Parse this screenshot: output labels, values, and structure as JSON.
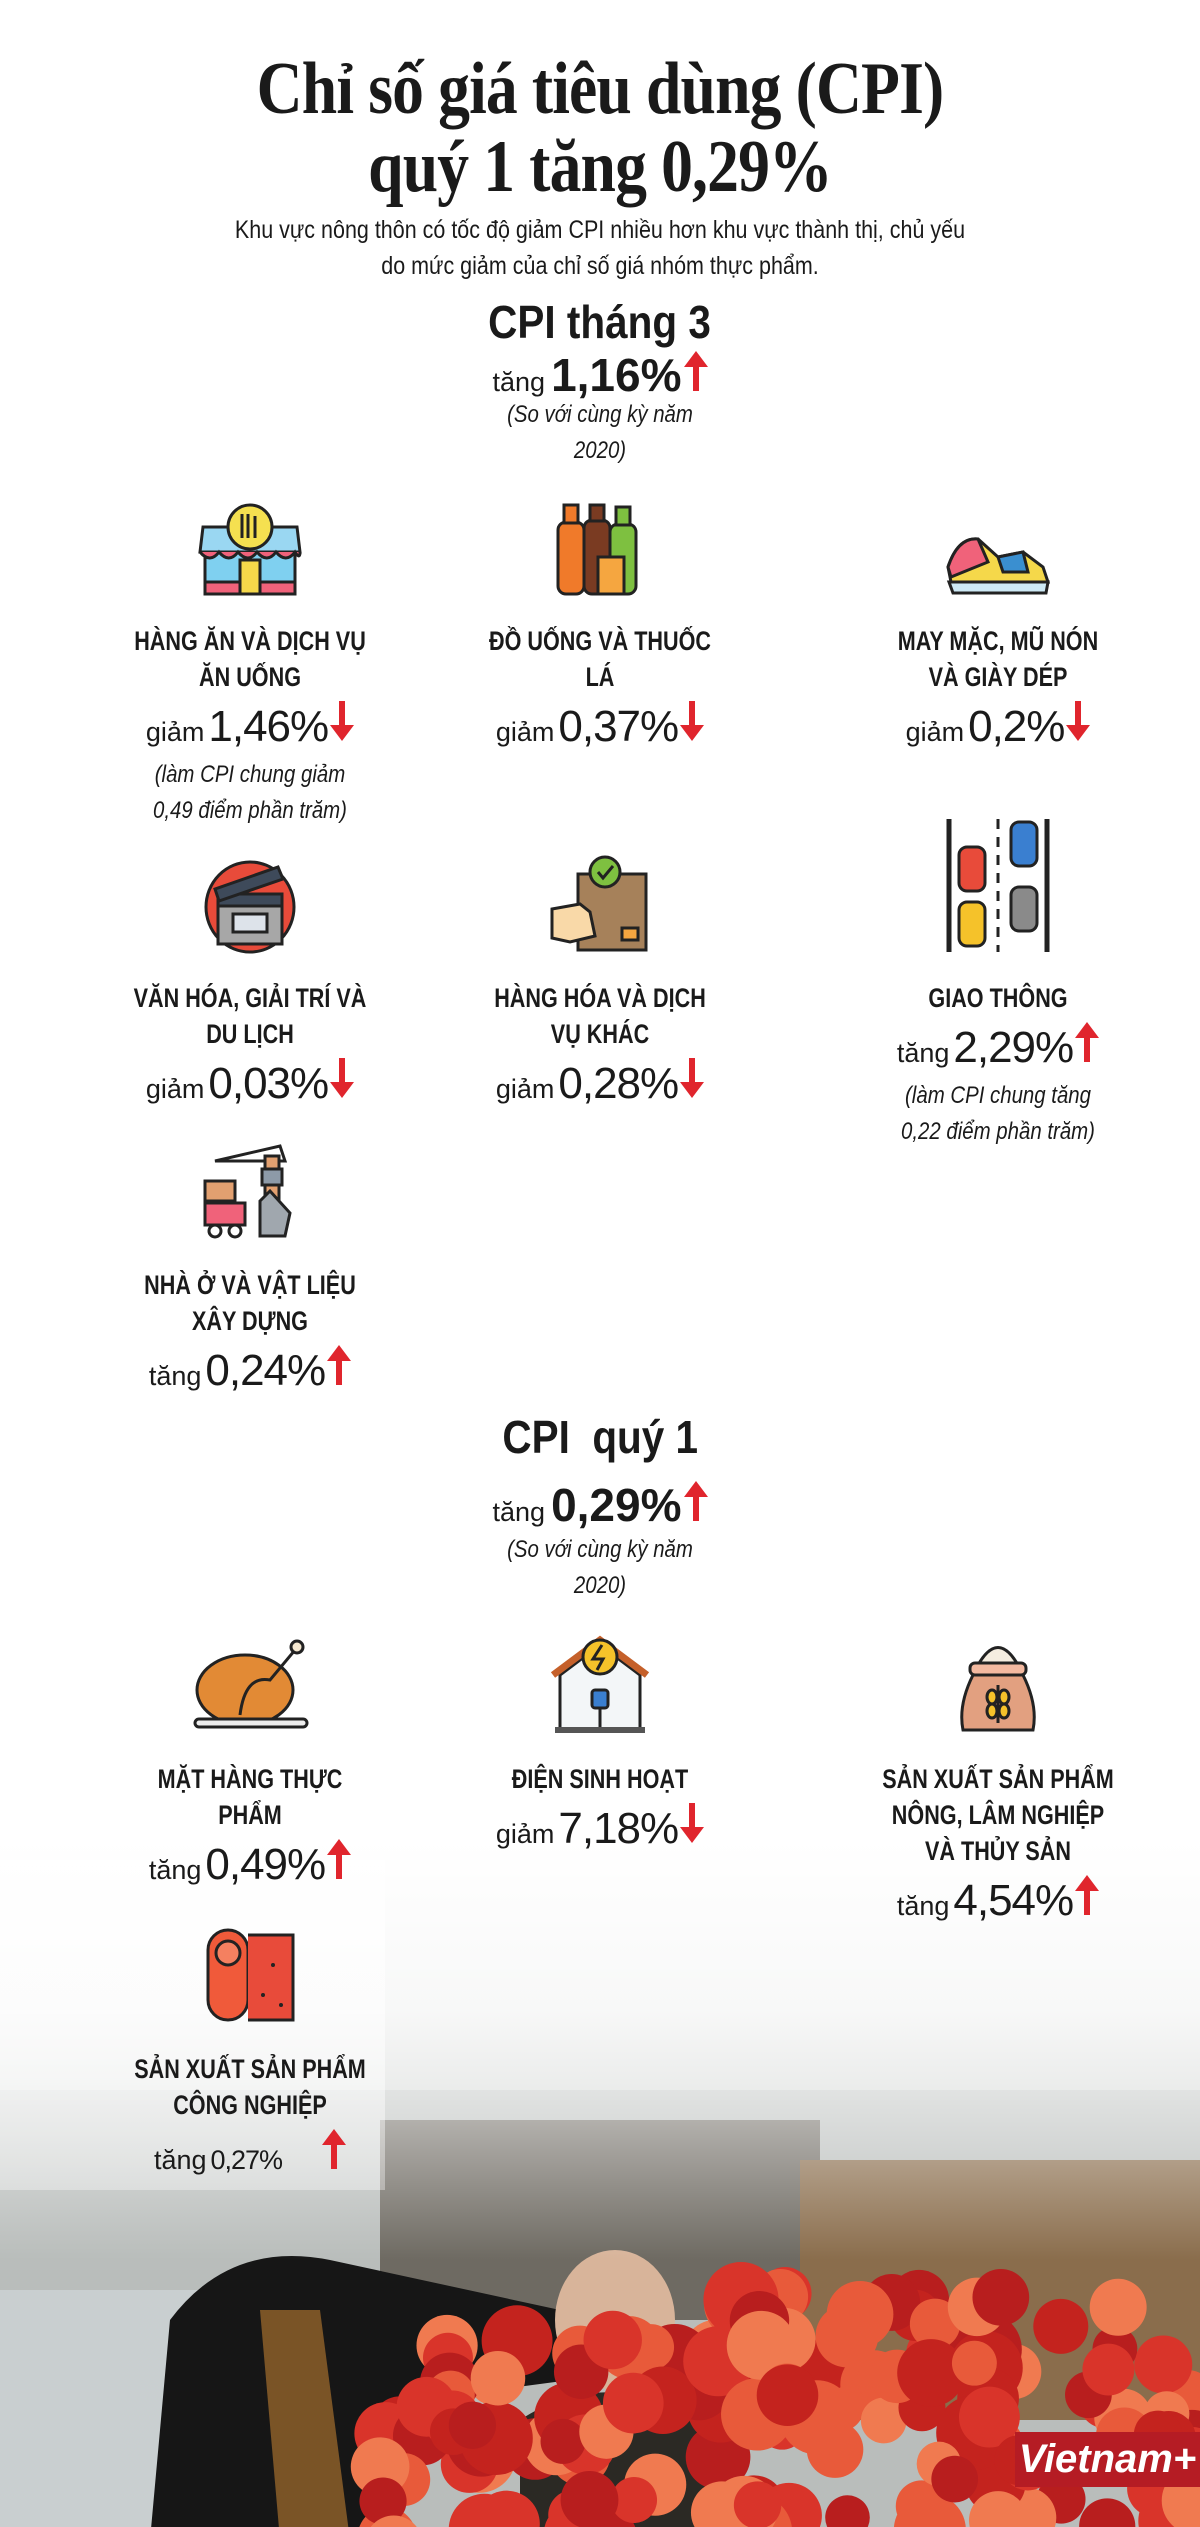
{
  "title": [
    "Chỉ số giá tiêu dùng (CPI)",
    "quý 1 tăng 0,29%"
  ],
  "subtitle": [
    "Khu vực nông thôn có tốc độ giảm CPI nhiều hơn khu vực thành thị, chủ yếu",
    "do mức giảm của chỉ số giá nhóm thực phẩm."
  ],
  "colors": {
    "arrow": "#e0252d",
    "text": "#1a1a1a",
    "logo": "#b51c24"
  },
  "month": {
    "title": "CPI tháng 3",
    "word": "tăng",
    "value": "1,16%",
    "direction": "up",
    "note": [
      "(So với cùng kỳ năm",
      "2020)"
    ]
  },
  "quarter": {
    "title": "CPI  quý 1",
    "word": "tăng",
    "value": "0,29%",
    "direction": "up",
    "note": [
      "(So với cùng kỳ năm",
      "2020)"
    ]
  },
  "items": [
    {
      "icon": "restaurant-icon",
      "label": [
        "HÀNG ĂN VÀ DỊCH VỤ",
        "ĂN UỐNG",
        ""
      ],
      "word": "giảm",
      "value": "1,46%",
      "direction": "down",
      "note": [
        "(làm CPI chung giảm",
        "0,49 điểm phần trăm)"
      ]
    },
    {
      "icon": "bottles-icon",
      "label": [
        "ĐỒ UỐNG VÀ THUỐC",
        "LÁ",
        ""
      ],
      "word": "giảm",
      "value": "0,37%",
      "direction": "down",
      "note": [
        "",
        ""
      ]
    },
    {
      "icon": "sneaker-icon",
      "label": [
        "MAY MẶC, MŨ NÓN",
        "VÀ GIÀY DÉP",
        ""
      ],
      "word": "giảm",
      "value": "0,2%",
      "direction": "down",
      "note": [
        "",
        ""
      ]
    },
    {
      "icon": "clapperboard-icon",
      "label": [
        "VĂN HÓA, GIẢI TRÍ VÀ",
        "DU LỊCH",
        ""
      ],
      "word": "giảm",
      "value": "0,03%",
      "direction": "down",
      "note": [
        "",
        ""
      ]
    },
    {
      "icon": "package-icon",
      "label": [
        "HÀNG HÓA VÀ DỊCH",
        "VỤ KHÁC",
        ""
      ],
      "word": "giảm",
      "value": "0,28%",
      "direction": "down",
      "note": [
        "",
        ""
      ]
    },
    {
      "icon": "traffic-icon",
      "label": [
        "GIAO THÔNG",
        "",
        ""
      ],
      "word": "tăng",
      "value": "2,29%",
      "direction": "up",
      "note": [
        "(làm CPI chung tăng",
        "0,22 điểm phần trăm)"
      ]
    },
    {
      "icon": "construction-icon",
      "label": [
        "NHÀ Ở VÀ VẬT LIỆU",
        "XÂY DỰNG",
        ""
      ],
      "word": "tăng",
      "value": "0,24%",
      "direction": "up",
      "note": [
        "",
        ""
      ]
    },
    {
      "icon": "roast-chicken-icon",
      "label": [
        "MẶT HÀNG THỰC",
        "PHẨM",
        ""
      ],
      "word": "tăng",
      "value": "0,49%",
      "direction": "up",
      "note": [
        "",
        ""
      ]
    },
    {
      "icon": "electricity-house-icon",
      "label": [
        "ĐIỆN SINH HOẠT",
        "",
        ""
      ],
      "word": "giảm",
      "value": "7,18%",
      "direction": "down",
      "note": [
        "",
        ""
      ]
    },
    {
      "icon": "grain-sack-icon",
      "label": [
        "SẢN XUẤT SẢN PHẨM",
        "NÔNG, LÂM NGHIỆP",
        "VÀ THỦY SẢN"
      ],
      "word": "tăng",
      "value": "4,54%",
      "direction": "up",
      "note": [
        "",
        ""
      ]
    },
    {
      "icon": "fabric-roll-icon",
      "label": [
        "SẢN XUẤT SẢN PHẨM",
        "CÔNG NGHIỆP",
        ""
      ],
      "word": "tăng",
      "value": "0,27%",
      "direction": "up",
      "note": [
        "",
        ""
      ]
    }
  ],
  "logo": "Vietnam+"
}
